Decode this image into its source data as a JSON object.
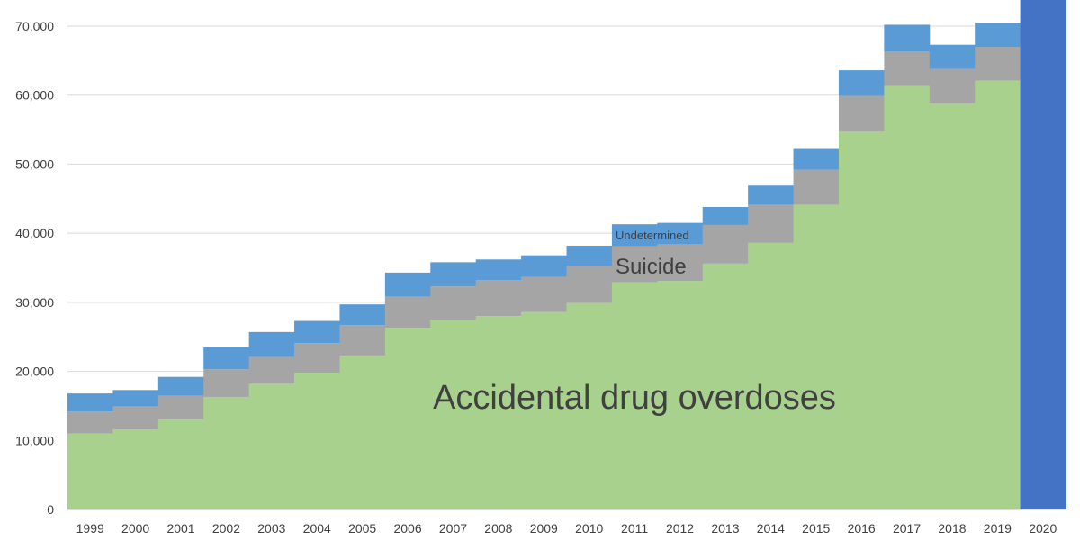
{
  "chart_data": {
    "type": "area",
    "stacked": true,
    "step": true,
    "title": "",
    "xlabel": "",
    "ylabel": "",
    "ylim": [
      0,
      70000
    ],
    "yticks": [
      "0",
      "10,000",
      "20,000",
      "30,000",
      "40,000",
      "50,000",
      "60,000",
      "70,000"
    ],
    "ytick_values": [
      0,
      10000,
      20000,
      30000,
      40000,
      50000,
      60000,
      70000
    ],
    "grid": "horizontal",
    "categories": [
      "1999",
      "2000",
      "2001",
      "2002",
      "2003",
      "2004",
      "2005",
      "2006",
      "2007",
      "2008",
      "2009",
      "2010",
      "2011",
      "2012",
      "2013",
      "2014",
      "2015",
      "2016",
      "2017",
      "2018",
      "2019",
      "2020"
    ],
    "series": [
      {
        "name": "Accidental drug overdoses",
        "color": "#a9d18e",
        "values": [
          11000,
          11600,
          13000,
          16300,
          18200,
          19800,
          22300,
          26300,
          27500,
          28000,
          28600,
          29900,
          32900,
          33100,
          35600,
          38600,
          44100,
          54700,
          61300,
          58800,
          62100,
          null
        ]
      },
      {
        "name": "Suicide",
        "color": "#a5a5a5",
        "values": [
          3200,
          3300,
          3500,
          4000,
          3900,
          4300,
          4400,
          4500,
          4800,
          5200,
          5100,
          5400,
          5200,
          5300,
          5600,
          5500,
          5100,
          5200,
          5000,
          5000,
          4900,
          null
        ]
      },
      {
        "name": "Undetermined",
        "color": "#5b9bd5",
        "values": [
          2600,
          2400,
          2700,
          3200,
          3600,
          3200,
          3000,
          3500,
          3500,
          3000,
          3100,
          2900,
          3200,
          3100,
          2600,
          2800,
          3000,
          3700,
          3900,
          3500,
          3500,
          null
        ]
      }
    ],
    "highlight_bar": {
      "category": "2020",
      "color": "#4472c4",
      "fills_plot": true
    },
    "annotations": {
      "accidental": "Accidental drug overdoses",
      "suicide": "Suicide",
      "undetermined": "Undetermined"
    }
  }
}
